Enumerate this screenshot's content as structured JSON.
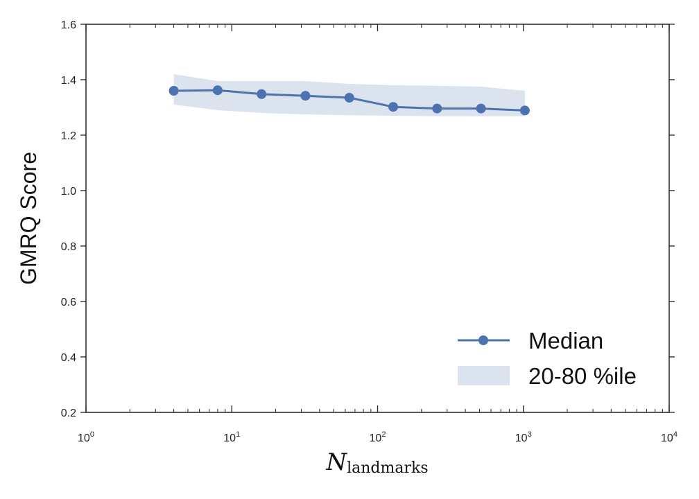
{
  "chart_data": {
    "type": "line",
    "x_scale": "log",
    "xlabel": {
      "main": "N",
      "subscript": "landmarks"
    },
    "ylabel": "GMRQ Score",
    "xlim": [
      1,
      10000
    ],
    "ylim": [
      0.2,
      1.6
    ],
    "x_ticks": [
      {
        "base": "10",
        "exp": "0",
        "value": 1
      },
      {
        "base": "10",
        "exp": "1",
        "value": 10
      },
      {
        "base": "10",
        "exp": "2",
        "value": 100
      },
      {
        "base": "10",
        "exp": "3",
        "value": 1000
      },
      {
        "base": "10",
        "exp": "4",
        "value": 10000
      }
    ],
    "y_ticks": [
      "0.2",
      "0.4",
      "0.6",
      "0.8",
      "1.0",
      "1.2",
      "1.4",
      "1.6"
    ],
    "grid": false,
    "legend": {
      "position": "bottom-right",
      "entries": [
        "Median",
        "20-80 %ile"
      ]
    },
    "colors": {
      "line": "#4c72b0",
      "band": "#dbe3ef"
    },
    "series": [
      {
        "name": "Median",
        "type": "line",
        "x": [
          4,
          8,
          16,
          32,
          64,
          128,
          256,
          512,
          1024
        ],
        "y": [
          1.36,
          1.362,
          1.348,
          1.342,
          1.335,
          1.302,
          1.296,
          1.296,
          1.289
        ]
      },
      {
        "name": "20-80 %ile",
        "type": "band",
        "x": [
          4,
          8,
          16,
          32,
          64,
          128,
          256,
          512,
          1024
        ],
        "lower": [
          1.31,
          1.29,
          1.28,
          1.275,
          1.272,
          1.27,
          1.268,
          1.268,
          1.268
        ],
        "upper": [
          1.42,
          1.395,
          1.395,
          1.395,
          1.385,
          1.38,
          1.378,
          1.375,
          1.36
        ]
      }
    ]
  }
}
